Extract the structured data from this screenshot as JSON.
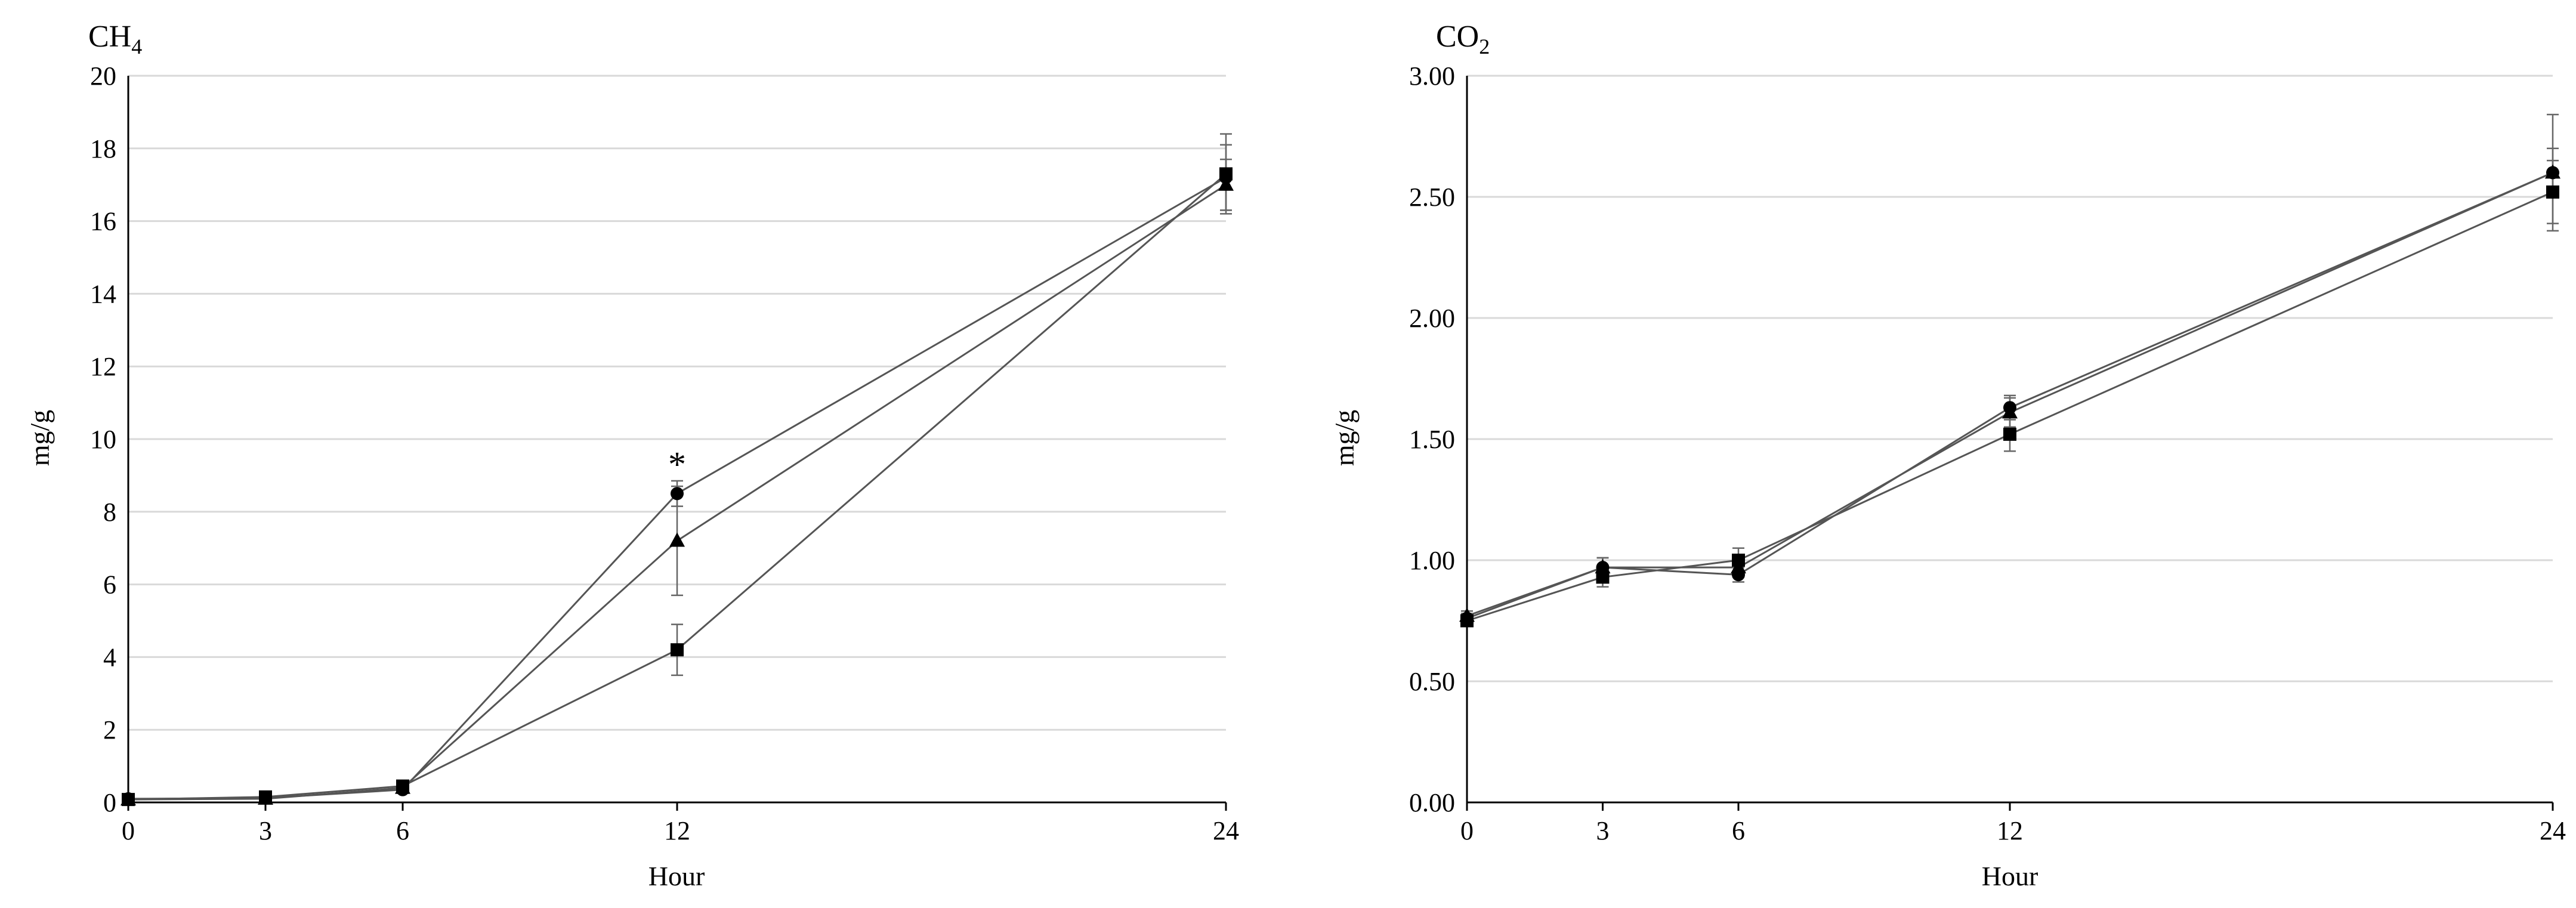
{
  "chart_data": [
    {
      "type": "line",
      "title": "CH",
      "title_subscript": "4",
      "xlabel": "Hour",
      "ylabel": "mg/g",
      "x": [
        0,
        3,
        6,
        12,
        24
      ],
      "x_ticks": [
        "0",
        "3",
        "6",
        "12",
        "24"
      ],
      "ylim": [
        0,
        20
      ],
      "y_ticks": [
        "0",
        "2",
        "4",
        "6",
        "8",
        "10",
        "12",
        "14",
        "16",
        "18",
        "20"
      ],
      "grid": true,
      "legend": "none",
      "series": [
        {
          "marker": "circle",
          "values": [
            0.1,
            0.12,
            0.35,
            8.5,
            17.2
          ],
          "error": [
            0.05,
            0.05,
            0.1,
            0.35,
            0.9
          ]
        },
        {
          "marker": "triangle",
          "values": [
            0.08,
            0.1,
            0.4,
            7.2,
            17.0
          ],
          "error": [
            0.05,
            0.05,
            0.1,
            1.5,
            0.7
          ]
        },
        {
          "marker": "square",
          "values": [
            0.08,
            0.15,
            0.45,
            4.2,
            17.3
          ],
          "error": [
            0.05,
            0.05,
            0.1,
            0.7,
            1.1
          ]
        }
      ],
      "annotations": [
        {
          "text": "*",
          "x": 12,
          "y": 9.3
        }
      ],
      "colors": {
        "line": "#555555",
        "marker": "#000000",
        "grid": "#d9d9d9"
      }
    },
    {
      "type": "line",
      "title": "CO",
      "title_subscript": "2",
      "xlabel": "Hour",
      "ylabel": "mg/g",
      "x": [
        0,
        3,
        6,
        12,
        24
      ],
      "x_ticks": [
        "0",
        "3",
        "6",
        "12",
        "24"
      ],
      "ylim": [
        0,
        3.0
      ],
      "y_ticks": [
        "0.00",
        "0.50",
        "1.00",
        "1.50",
        "2.00",
        "2.50",
        "3.00"
      ],
      "grid": true,
      "legend": "none",
      "series": [
        {
          "marker": "circle",
          "values": [
            0.76,
            0.97,
            0.94,
            1.63,
            2.6
          ],
          "error": [
            0.02,
            0.04,
            0.03,
            0.05,
            0.1
          ]
        },
        {
          "marker": "triangle",
          "values": [
            0.77,
            0.97,
            0.97,
            1.61,
            2.6
          ],
          "error": [
            0.02,
            0.04,
            0.04,
            0.06,
            0.24
          ]
        },
        {
          "marker": "square",
          "values": [
            0.75,
            0.93,
            1.0,
            1.52,
            2.52
          ],
          "error": [
            0.02,
            0.04,
            0.05,
            0.07,
            0.13
          ]
        }
      ],
      "annotations": [],
      "colors": {
        "line": "#555555",
        "marker": "#000000",
        "grid": "#d9d9d9"
      }
    }
  ]
}
